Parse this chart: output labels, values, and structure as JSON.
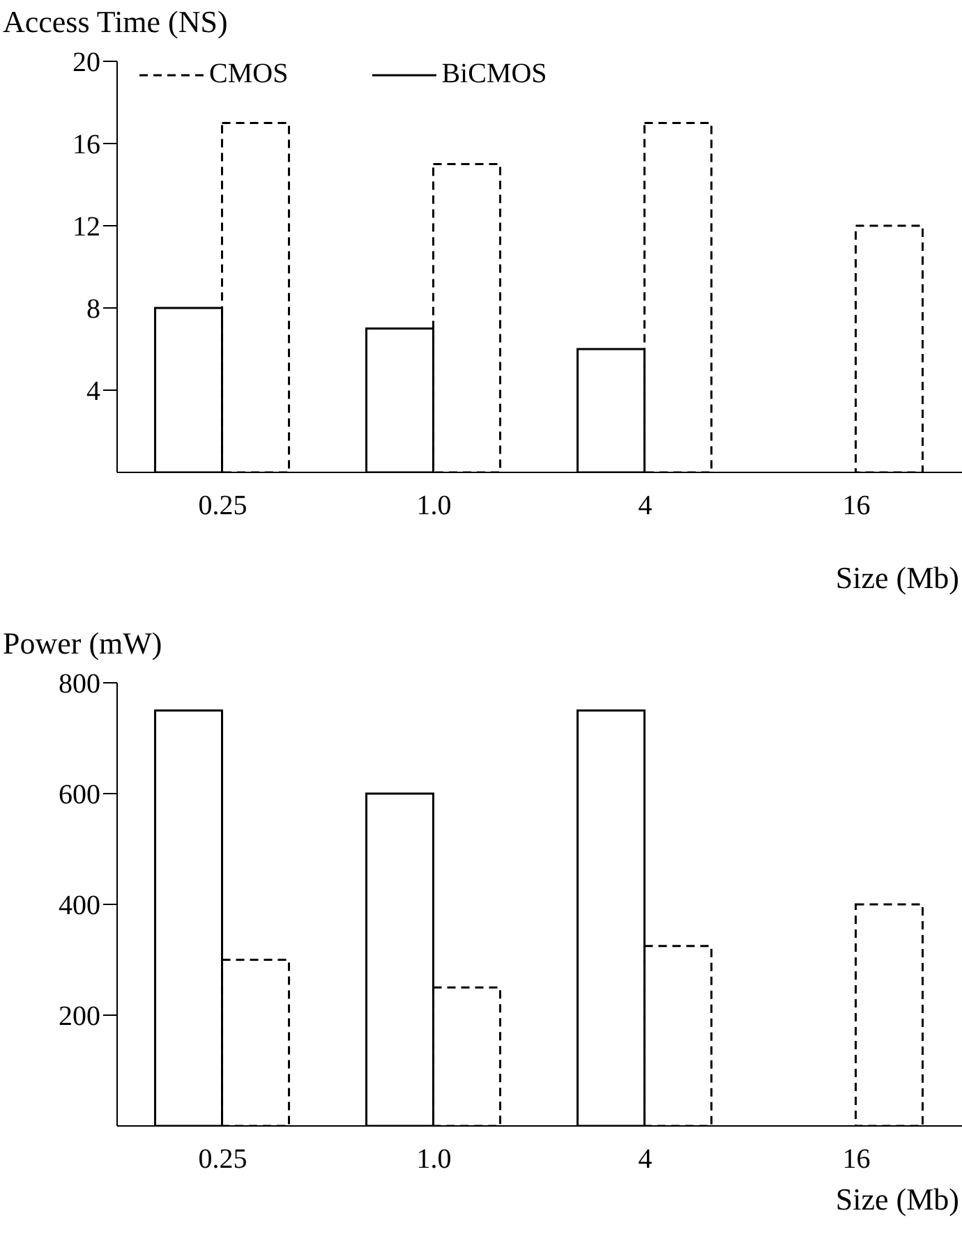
{
  "chart_data": [
    {
      "type": "bar",
      "ylabel": "Access Time (NS)",
      "xlabel": "Size (Mb)",
      "categories": [
        "0.25",
        "1.0",
        "4",
        "16"
      ],
      "ylim": [
        0,
        20
      ],
      "yticks": [
        4,
        8,
        12,
        16,
        20
      ],
      "grid": false,
      "legend": "top left",
      "series": [
        {
          "name": "BiCMOS",
          "color": "#000000",
          "line_style": "solid",
          "values": [
            8,
            7,
            6,
            null
          ]
        },
        {
          "name": "CMOS",
          "color": "#000000",
          "line_style": "dashed",
          "values": [
            17,
            15,
            17,
            12
          ]
        }
      ]
    },
    {
      "type": "bar",
      "ylabel": "Power (mW)",
      "xlabel": "Size (Mb)",
      "categories": [
        "0.25",
        "1.0",
        "4",
        "16"
      ],
      "ylim": [
        0,
        800
      ],
      "yticks": [
        200,
        400,
        600,
        800
      ],
      "grid": false,
      "legend": false,
      "series": [
        {
          "color": "#000000",
          "line_style": "solid",
          "values": [
            750,
            600,
            750,
            null
          ]
        },
        {
          "color": "#000000",
          "line_style": "dashed",
          "values": [
            300,
            250,
            325,
            400
          ]
        }
      ]
    }
  ]
}
